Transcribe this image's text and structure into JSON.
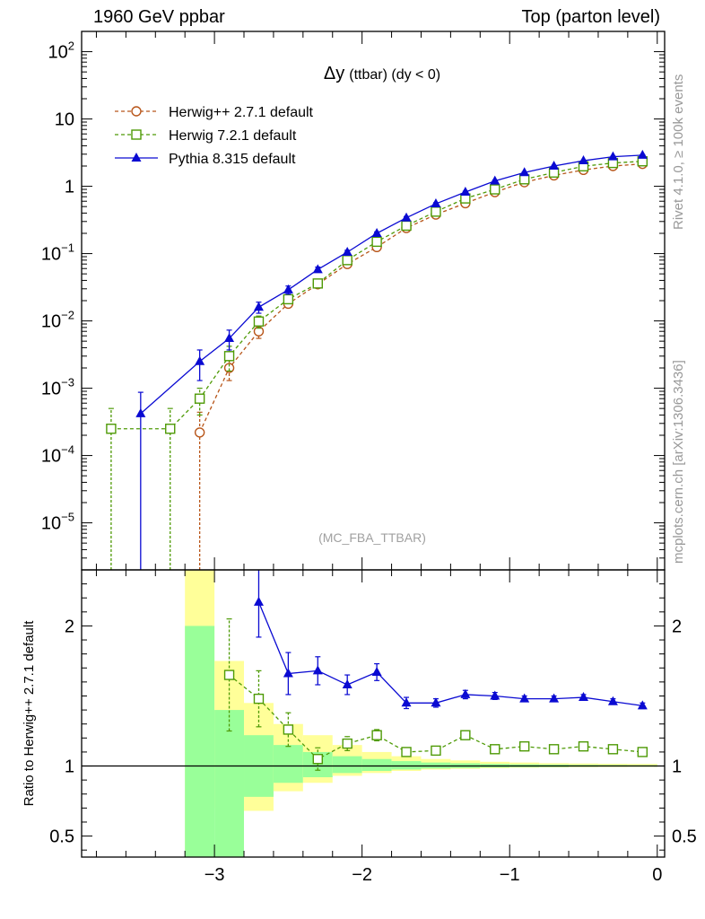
{
  "header": {
    "left": "1960 GeV ppbar",
    "right": "Top (parton level)"
  },
  "side_labels": {
    "rivet": "Rivet 4.1.0, ≥ 100k events",
    "mcplots": "mcplots.cern.ch [arXiv:1306.3436]"
  },
  "colors": {
    "herwigpp": "#b8561a",
    "herwig7": "#4e9a06",
    "pythia": "#0a0ad2",
    "band_inner": "#99ff99",
    "band_outer": "#ffff99"
  },
  "chart_data": [
    {
      "type": "line",
      "title_symbol": "Δy",
      "title_rest": "(ttbar) (dy < 0)",
      "watermark": "(MC_FBA_TTBAR)",
      "yscale": "log",
      "xlim": [
        -3.9,
        0.05
      ],
      "ylim": [
        2e-06,
        200
      ],
      "ytick_labels": [
        {
          "base": "10",
          "exp": "-5",
          "value": 1e-05
        },
        {
          "base": "10",
          "exp": "-4",
          "value": 0.0001
        },
        {
          "base": "10",
          "exp": "-3",
          "value": 0.001
        },
        {
          "base": "10",
          "exp": "-2",
          "value": 0.01
        },
        {
          "base": "10",
          "exp": "-1",
          "value": 0.1
        },
        {
          "base": "1",
          "exp": "",
          "value": 1
        },
        {
          "base": "10",
          "exp": "",
          "value": 10
        },
        {
          "base": "10",
          "exp": "2",
          "value": 100
        }
      ],
      "legend_position": "top-left",
      "series": [
        {
          "name": "Herwig++ 2.7.1 default",
          "marker": "open-circle",
          "line": "dashed",
          "x": [
            -3.1,
            -2.9,
            -2.7,
            -2.5,
            -2.3,
            -2.1,
            -1.9,
            -1.7,
            -1.5,
            -1.3,
            -1.1,
            -0.9,
            -0.7,
            -0.5,
            -0.3,
            -0.1
          ],
          "y": [
            0.00022,
            0.002,
            0.007,
            0.018,
            0.035,
            0.07,
            0.125,
            0.24,
            0.38,
            0.56,
            0.82,
            1.15,
            1.45,
            1.75,
            2.0,
            2.15
          ],
          "yerr_low": [
            0.00022,
            0.0007,
            0.0015,
            0.002,
            0.003,
            0.005,
            0.007,
            0.01,
            0.015,
            0.02,
            0.025,
            0.03,
            0.035,
            0.04,
            0.045,
            0.05
          ],
          "yerr_high": [
            0.00022,
            0.0007,
            0.0015,
            0.002,
            0.003,
            0.005,
            0.007,
            0.01,
            0.015,
            0.02,
            0.025,
            0.03,
            0.035,
            0.04,
            0.045,
            0.05
          ]
        },
        {
          "name": "Herwig 7.2.1 default",
          "marker": "open-square",
          "line": "dashed",
          "x": [
            -3.7,
            -3.3,
            -3.1,
            -2.9,
            -2.7,
            -2.5,
            -2.3,
            -2.1,
            -1.9,
            -1.7,
            -1.5,
            -1.3,
            -1.1,
            -0.9,
            -0.7,
            -0.5,
            -0.3,
            -0.1
          ],
          "y": [
            0.00025,
            0.00025,
            0.0007,
            0.003,
            0.0098,
            0.021,
            0.036,
            0.08,
            0.15,
            0.26,
            0.42,
            0.66,
            0.9,
            1.27,
            1.6,
            1.98,
            2.22,
            2.35
          ],
          "yerr_low": [
            0.00025,
            0.00025,
            0.0003,
            0.0012,
            0.002,
            0.003,
            0.004,
            0.005,
            0.008,
            0.01,
            0.015,
            0.02,
            0.025,
            0.03,
            0.035,
            0.04,
            0.045,
            0.05
          ],
          "yerr_high": [
            0.00025,
            0.00025,
            0.0003,
            0.0012,
            0.002,
            0.003,
            0.004,
            0.005,
            0.008,
            0.01,
            0.015,
            0.02,
            0.025,
            0.03,
            0.035,
            0.04,
            0.045,
            0.05
          ]
        },
        {
          "name": "Pythia 8.315 default",
          "marker": "filled-triangle",
          "line": "solid",
          "x": [
            -3.5,
            -3.1,
            -2.9,
            -2.7,
            -2.5,
            -2.3,
            -2.1,
            -1.9,
            -1.7,
            -1.5,
            -1.3,
            -1.1,
            -0.9,
            -0.7,
            -0.5,
            -0.3,
            -0.1
          ],
          "y": [
            0.00042,
            0.0025,
            0.0055,
            0.016,
            0.029,
            0.058,
            0.105,
            0.2,
            0.34,
            0.55,
            0.82,
            1.2,
            1.6,
            2.0,
            2.4,
            2.75,
            2.9
          ],
          "yerr_low": [
            0.00042,
            0.0012,
            0.0018,
            0.003,
            0.004,
            0.005,
            0.007,
            0.01,
            0.015,
            0.02,
            0.025,
            0.03,
            0.035,
            0.04,
            0.045,
            0.05,
            0.05
          ],
          "yerr_high": [
            0.00045,
            0.0012,
            0.0018,
            0.003,
            0.004,
            0.005,
            0.007,
            0.01,
            0.015,
            0.02,
            0.025,
            0.03,
            0.035,
            0.04,
            0.045,
            0.05,
            0.05
          ]
        }
      ]
    },
    {
      "type": "line",
      "ylabel": "Ratio to Herwig++ 2.7.1 default",
      "xlim": [
        -3.9,
        0.05
      ],
      "ylim": [
        0.35,
        2.4
      ],
      "xtick_labels": [
        {
          "label": "−3",
          "value": -3
        },
        {
          "label": "−2",
          "value": -2
        },
        {
          "label": "−1",
          "value": -1
        },
        {
          "label": "0",
          "value": 0
        }
      ],
      "ytick_labels": [
        {
          "label": "0.5",
          "value": 0.5
        },
        {
          "label": "1",
          "value": 1
        },
        {
          "label": "2",
          "value": 2
        }
      ],
      "reference_line": 1,
      "band": {
        "edges": [
          -3.2,
          -3.0,
          -2.8,
          -2.6,
          -2.4,
          -2.2,
          -2.0,
          -1.8,
          -1.6,
          -1.4,
          -1.2,
          -1.0,
          -0.8,
          -0.6,
          -0.4,
          -0.2,
          0.0
        ],
        "outer_low": [
          0.0,
          0.7,
          0.68,
          0.82,
          0.88,
          0.93,
          0.95,
          0.965,
          0.975,
          0.98,
          0.985,
          0.988,
          0.99,
          0.992,
          0.993,
          0.994
        ],
        "outer_high": [
          2.6,
          1.75,
          1.45,
          1.3,
          1.22,
          1.15,
          1.1,
          1.07,
          1.05,
          1.04,
          1.03,
          1.025,
          1.02,
          1.018,
          1.016,
          1.015
        ],
        "inner_low": [
          0.0,
          0.35,
          0.78,
          0.88,
          0.92,
          0.95,
          0.965,
          0.975,
          0.982,
          0.986,
          0.99,
          0.992,
          0.993,
          0.995,
          0.996,
          0.996
        ],
        "inner_high": [
          2.0,
          1.4,
          1.22,
          1.15,
          1.1,
          1.07,
          1.05,
          1.035,
          1.025,
          1.02,
          1.015,
          1.012,
          1.01,
          1.008,
          1.007,
          1.006
        ]
      },
      "series": [
        {
          "name": "Herwig 7.2.1 default",
          "marker": "open-square",
          "line": "dashed",
          "x": [
            -2.9,
            -2.7,
            -2.5,
            -2.3,
            -2.1,
            -1.9,
            -1.7,
            -1.5,
            -1.3,
            -1.1,
            -0.9,
            -0.7,
            -0.5,
            -0.3,
            -0.1
          ],
          "y": [
            1.65,
            1.48,
            1.26,
            1.05,
            1.16,
            1.22,
            1.1,
            1.11,
            1.22,
            1.12,
            1.14,
            1.12,
            1.14,
            1.12,
            1.1
          ],
          "yerr": [
            0.4,
            0.2,
            0.12,
            0.08,
            0.05,
            0.04,
            0.03,
            0.03,
            0.025,
            0.02,
            0.02,
            0.02,
            0.02,
            0.02,
            0.02
          ]
        },
        {
          "name": "Pythia 8.315 default",
          "marker": "filled-triangle",
          "line": "solid",
          "x": [
            -2.7,
            -2.5,
            -2.3,
            -2.1,
            -1.9,
            -1.7,
            -1.5,
            -1.3,
            -1.1,
            -0.9,
            -0.7,
            -0.5,
            -0.3,
            -0.1
          ],
          "y": [
            2.17,
            1.66,
            1.68,
            1.58,
            1.67,
            1.45,
            1.45,
            1.51,
            1.5,
            1.48,
            1.48,
            1.49,
            1.46,
            1.43
          ],
          "yerr": [
            0.25,
            0.15,
            0.1,
            0.07,
            0.06,
            0.04,
            0.03,
            0.03,
            0.025,
            0.02,
            0.02,
            0.02,
            0.02,
            0.02
          ]
        }
      ]
    }
  ]
}
